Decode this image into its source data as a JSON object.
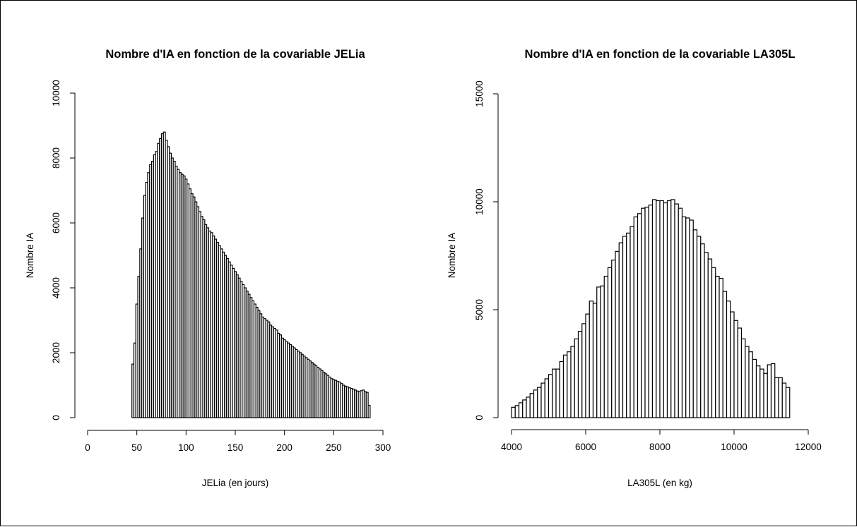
{
  "chart_data": [
    {
      "type": "bar",
      "title": "Nombre d'IA en fonction de la covariable JELia",
      "xlabel": "JELia (en jours)",
      "ylabel": "Nombre IA",
      "xlim": [
        0,
        300
      ],
      "ylim": [
        0,
        10000
      ],
      "xticks": [
        0,
        50,
        100,
        150,
        200,
        250,
        300
      ],
      "yticks": [
        0,
        2000,
        4000,
        6000,
        8000,
        10000
      ],
      "bin_start": 45,
      "bin_width": 2,
      "values": [
        1650,
        2300,
        3500,
        4350,
        5200,
        6150,
        6850,
        7250,
        7550,
        7800,
        7900,
        8100,
        8200,
        8450,
        8600,
        8750,
        8800,
        8550,
        8350,
        8150,
        8000,
        7900,
        7750,
        7650,
        7550,
        7500,
        7450,
        7350,
        7200,
        7050,
        6900,
        6800,
        6650,
        6500,
        6350,
        6200,
        6100,
        5950,
        5850,
        5750,
        5700,
        5600,
        5500,
        5400,
        5300,
        5200,
        5100,
        5000,
        4900,
        4800,
        4700,
        4600,
        4500,
        4400,
        4300,
        4200,
        4100,
        4000,
        3900,
        3800,
        3700,
        3600,
        3500,
        3400,
        3300,
        3200,
        3100,
        3050,
        3000,
        2950,
        2850,
        2800,
        2750,
        2700,
        2600,
        2550,
        2450,
        2400,
        2350,
        2300,
        2250,
        2200,
        2150,
        2100,
        2050,
        2000,
        1950,
        1900,
        1850,
        1800,
        1750,
        1700,
        1650,
        1600,
        1550,
        1500,
        1450,
        1400,
        1350,
        1300,
        1250,
        1200,
        1170,
        1150,
        1120,
        1100,
        1050,
        1000,
        970,
        950,
        920,
        900,
        880,
        850,
        820,
        800,
        830,
        850,
        800,
        780,
        380
      ]
    },
    {
      "type": "bar",
      "title": "Nombre d'IA en fonction de la covariable LA305L",
      "xlabel": "LA305L (en kg)",
      "ylabel": "Nombre IA",
      "xlim": [
        4000,
        12000
      ],
      "ylim": [
        0,
        15000
      ],
      "xticks": [
        4000,
        6000,
        8000,
        10000,
        12000
      ],
      "yticks": [
        0,
        5000,
        10000,
        15000
      ],
      "bin_start": 4000,
      "bin_width": 100,
      "values": [
        480,
        560,
        690,
        820,
        950,
        1120,
        1280,
        1400,
        1600,
        1800,
        2000,
        2250,
        2250,
        2600,
        2900,
        3050,
        3300,
        3650,
        4000,
        4350,
        4800,
        5400,
        5300,
        6050,
        6100,
        6550,
        6950,
        7300,
        7700,
        8100,
        8400,
        8550,
        8850,
        9300,
        9450,
        9700,
        9750,
        9850,
        10100,
        10050,
        10050,
        9950,
        10050,
        10100,
        9900,
        9700,
        9300,
        9250,
        9150,
        8700,
        8400,
        8050,
        7650,
        7350,
        6950,
        6550,
        6450,
        5850,
        5400,
        4900,
        4500,
        4150,
        3650,
        3300,
        3050,
        2700,
        2400,
        2250,
        2050,
        2450,
        2500,
        1850,
        1850,
        1600,
        1400
      ]
    }
  ]
}
